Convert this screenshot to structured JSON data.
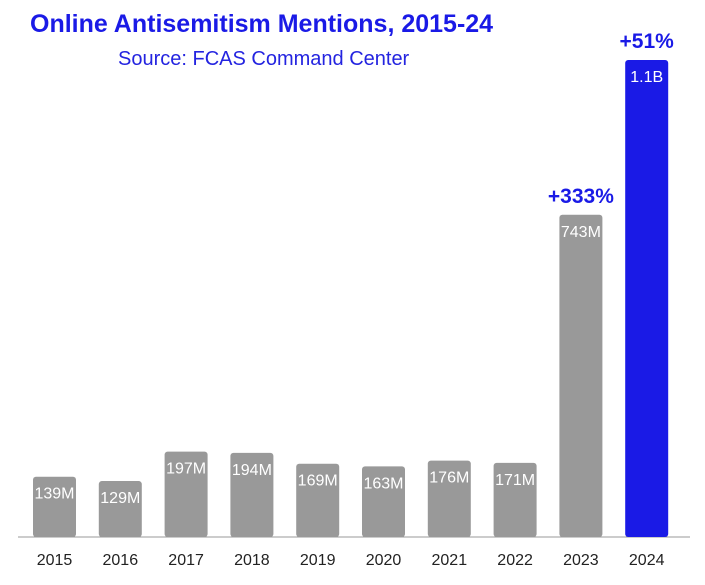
{
  "title": "Online Antisemitism Mentions, 2015-24",
  "subtitle": "Source: FCAS Command Center",
  "colors": {
    "title": "#1a1ae6",
    "bar": "#999999",
    "highlight": "#1a1ae6",
    "annotation": "#1a1ae6",
    "axis": "#999999"
  },
  "chart_data": {
    "type": "bar",
    "categories": [
      "2015",
      "2016",
      "2017",
      "2018",
      "2019",
      "2020",
      "2021",
      "2022",
      "2023",
      "2024"
    ],
    "values": [
      139,
      129,
      197,
      194,
      169,
      163,
      176,
      171,
      743,
      1100
    ],
    "unit": "millions",
    "data_labels": [
      "139M",
      "129M",
      "197M",
      "194M",
      "169M",
      "163M",
      "176M",
      "171M",
      "743M",
      "1.1B"
    ],
    "highlight_index": 9,
    "annotations": [
      {
        "category": "2023",
        "text": "+333%"
      },
      {
        "category": "2024",
        "text": "+51%"
      }
    ],
    "ylim": [
      0,
      1100
    ],
    "grid": false,
    "legend": "none"
  }
}
